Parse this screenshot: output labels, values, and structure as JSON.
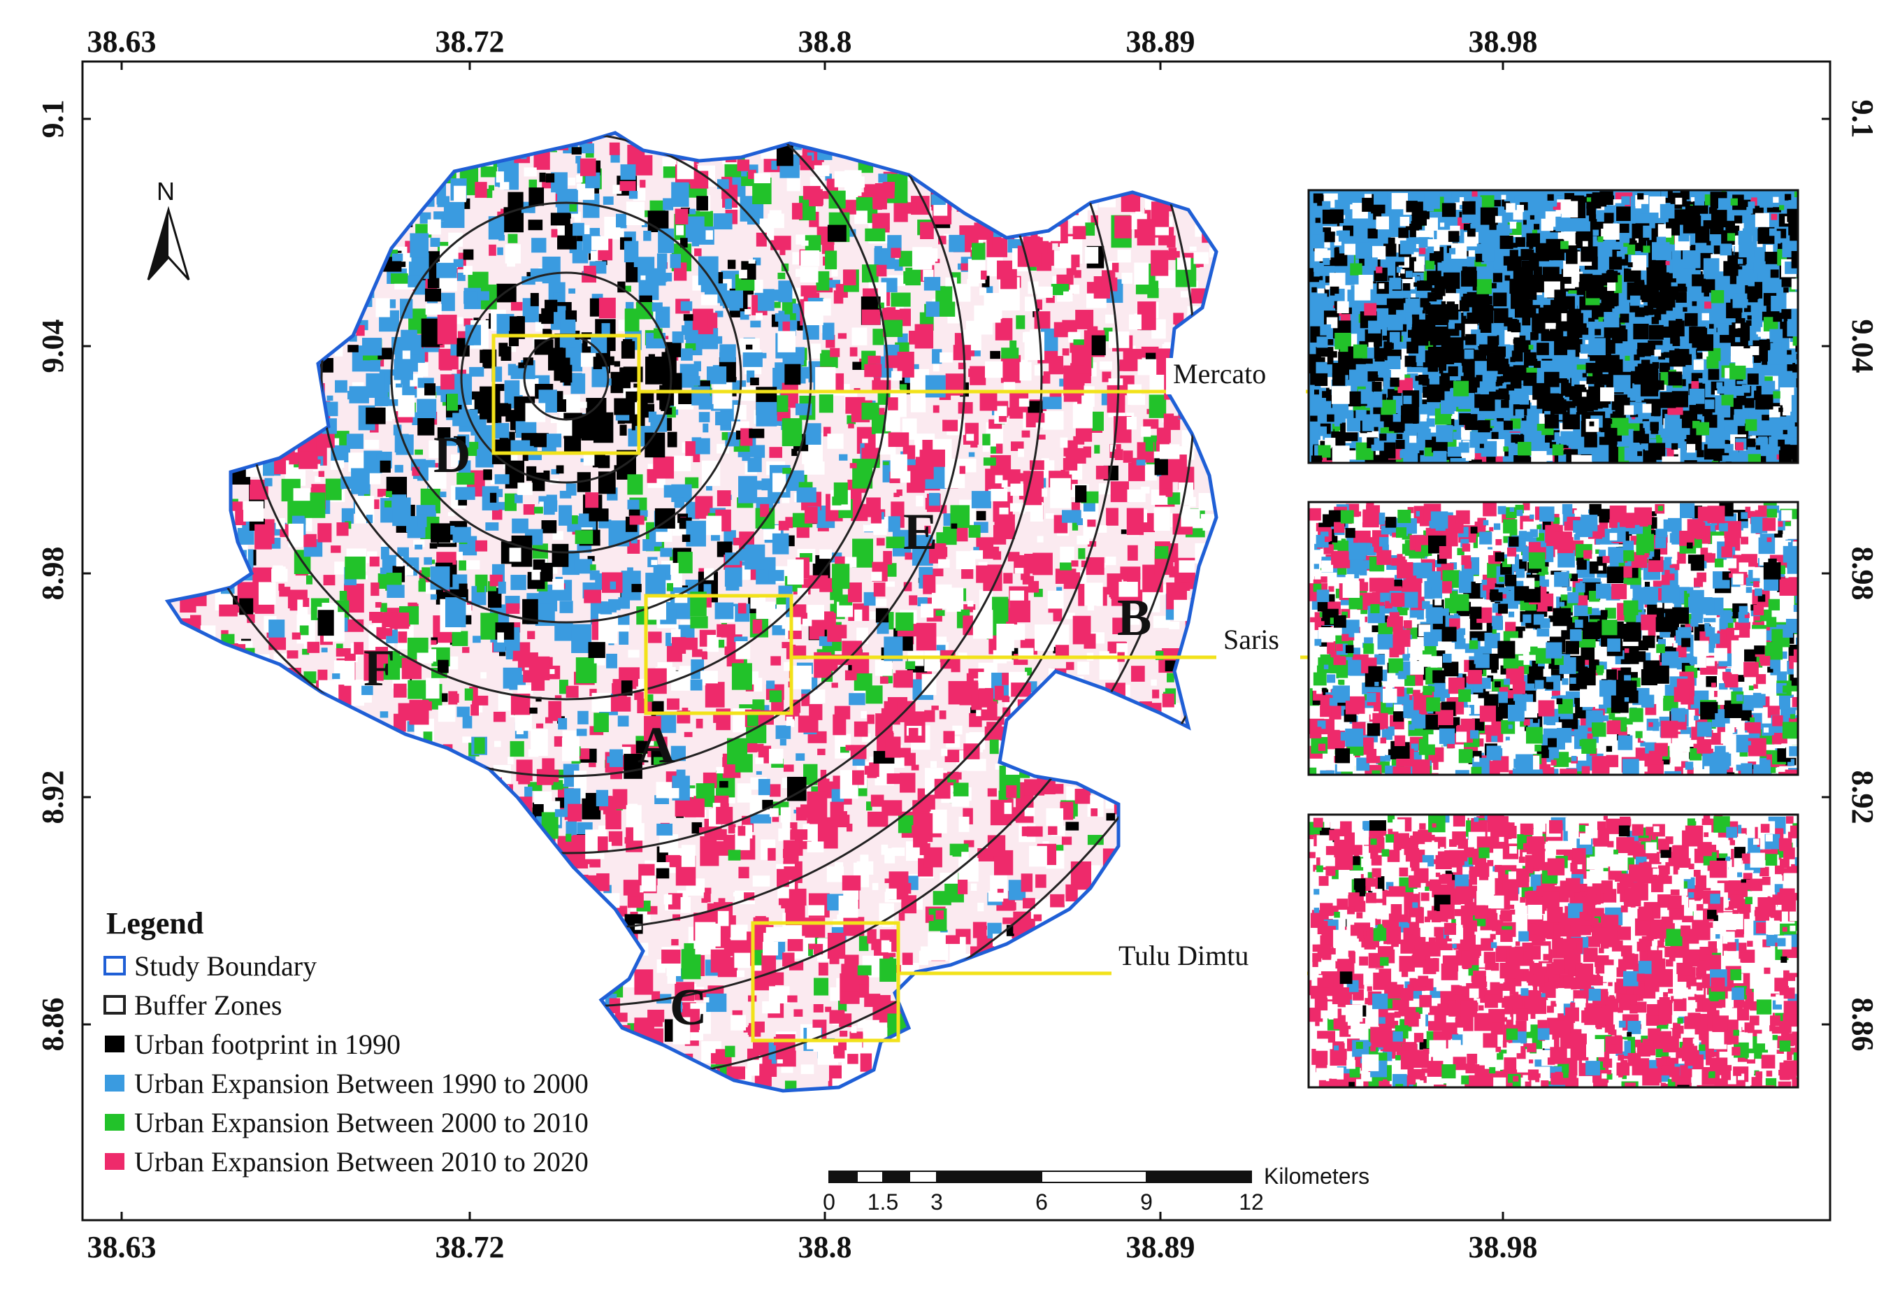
{
  "axes": {
    "x_ticks": [
      "38.63",
      "38.72",
      "38.8",
      "38.89",
      "38.98"
    ],
    "y_ticks": [
      "9.1",
      "9.04",
      "8.98",
      "8.92",
      "8.86"
    ]
  },
  "north_arrow": {
    "label": "N"
  },
  "zones": [
    "A",
    "B",
    "C",
    "D",
    "E",
    "F"
  ],
  "insets": [
    {
      "label": "Mercato"
    },
    {
      "label": "Saris"
    },
    {
      "label": "Tulu Dimtu"
    }
  ],
  "legend": {
    "title": "Legend",
    "items": [
      {
        "label": "Study Boundary",
        "color": "#1f5fd6"
      },
      {
        "label": "Buffer Zones",
        "color": "#222222"
      },
      {
        "label": "Urban footprint in 1990",
        "color": "#000000"
      },
      {
        "label": "Urban Expansion Between 1990 to 2000",
        "color": "#3a9be0"
      },
      {
        "label": "Urban Expansion Between 2000 to 2010",
        "color": "#22c22a"
      },
      {
        "label": "Urban Expansion Between 2010 to 2020",
        "color": "#ee2a6b"
      }
    ]
  },
  "scale_bar": {
    "unit": "Kilometers",
    "labels": [
      "0",
      "1.5",
      "3",
      "6",
      "9",
      "12"
    ]
  },
  "colors": {
    "boundary": "#1f5fd6",
    "inset_frame": "#f2e21a",
    "urban_1990": "#000000",
    "urban_1990_2000": "#3a9be0",
    "urban_2000_2010": "#22c22a",
    "urban_2010_2020": "#ee2a6b"
  }
}
